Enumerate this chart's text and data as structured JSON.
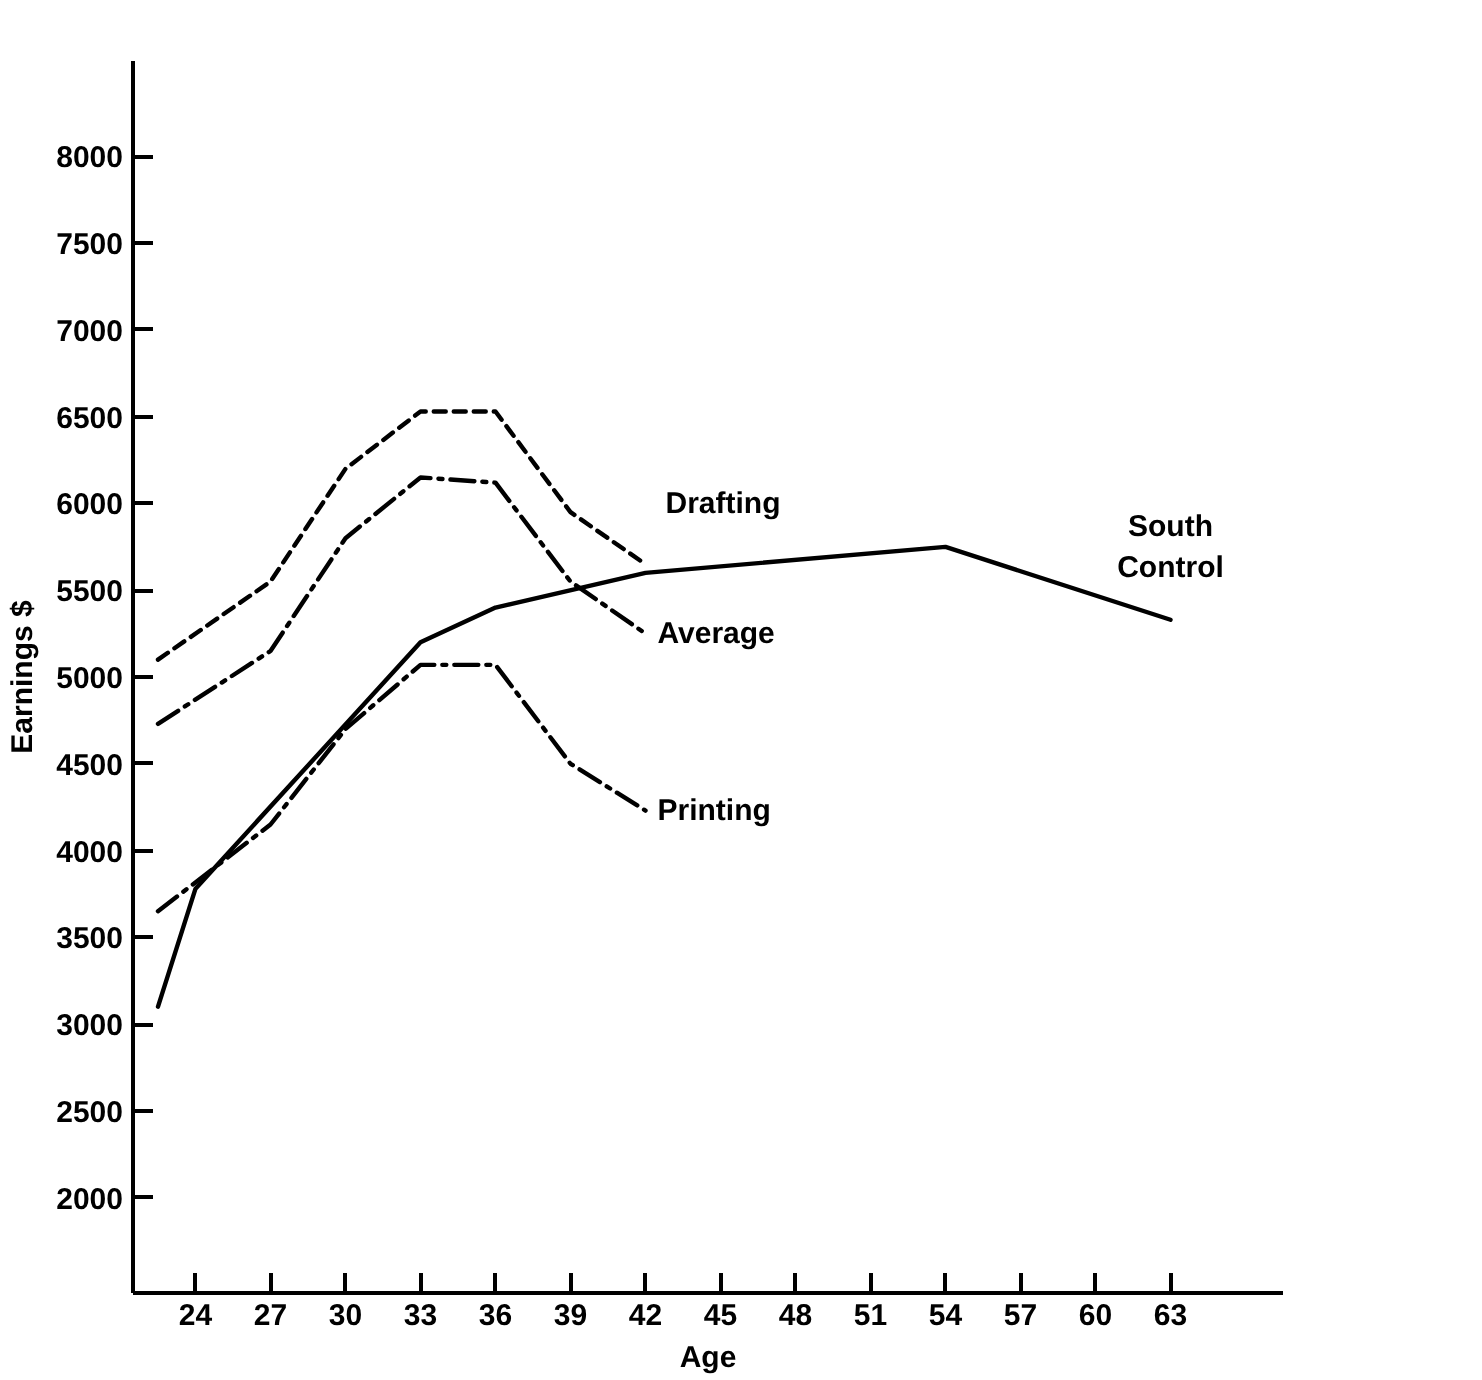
{
  "chart_data": {
    "type": "line",
    "xlabel": "Age",
    "ylabel": "Earnings $",
    "xlim": [
      21.5,
      67.5
    ],
    "ylim": [
      1450,
      8550
    ],
    "xticks": [
      24,
      27,
      30,
      33,
      36,
      39,
      42,
      45,
      48,
      51,
      54,
      57,
      60,
      63
    ],
    "yticks": [
      2000,
      2500,
      3000,
      3500,
      4000,
      4500,
      5000,
      5500,
      6000,
      6500,
      7000,
      7500,
      8000
    ],
    "grid": false,
    "marker": "none",
    "series": [
      {
        "name": "Drafting",
        "color": "#000000",
        "line_style": "dashed",
        "x": [
          22.5,
          27,
          30,
          33,
          36,
          39,
          42
        ],
        "values": [
          5100,
          5550,
          6200,
          6530,
          6530,
          5950,
          5650
        ]
      },
      {
        "name": "Average",
        "color": "#000000",
        "line_style": "dashdot",
        "x": [
          22.5,
          27,
          30,
          33,
          36,
          39,
          42
        ],
        "values": [
          4730,
          5150,
          5800,
          6150,
          6120,
          5550,
          5250
        ]
      },
      {
        "name": "Printing",
        "color": "#000000",
        "line_style": "dashdot",
        "x": [
          22.5,
          27,
          30,
          33,
          36,
          39,
          42
        ],
        "values": [
          3650,
          4150,
          4700,
          5070,
          5070,
          4500,
          4230
        ]
      },
      {
        "name": "South\nControl",
        "color": "#000000",
        "line_style": "solid",
        "x": [
          22.5,
          24,
          33,
          36,
          42,
          54,
          63
        ],
        "values": [
          3100,
          3780,
          5200,
          5400,
          5600,
          5750,
          5330
        ]
      }
    ]
  }
}
